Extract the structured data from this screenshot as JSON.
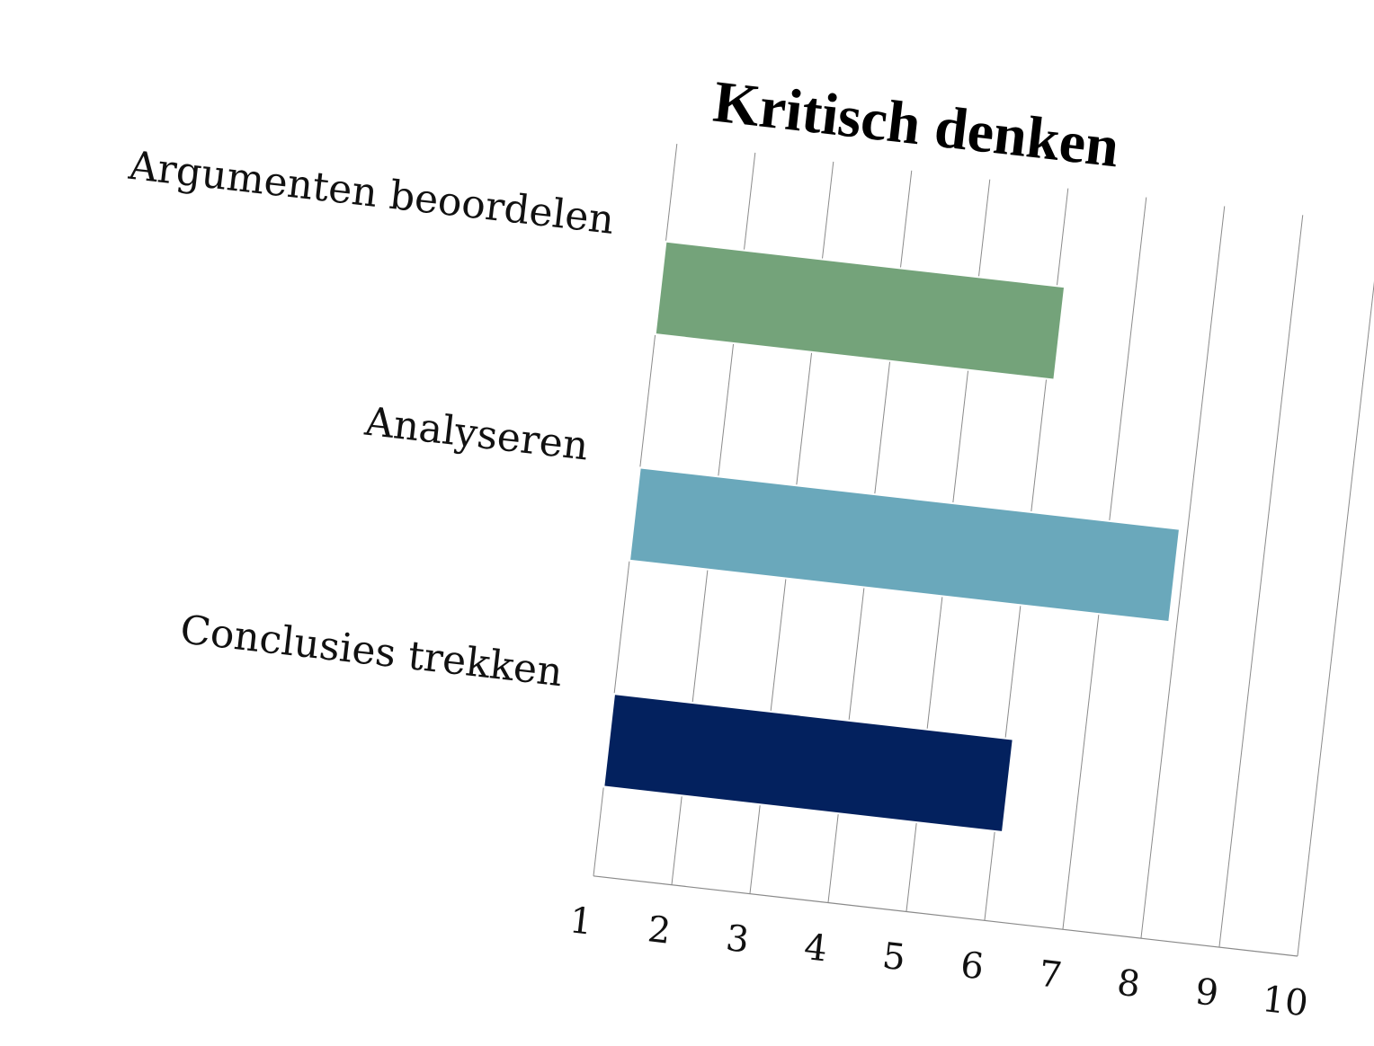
{
  "chart_data": {
    "type": "bar",
    "orientation": "horizontal",
    "title": "Kritisch denken",
    "categories": [
      "Argumenten beoordelen",
      "Analyseren",
      "Conclusies trekken"
    ],
    "values": [
      6.1,
      7.9,
      6.1
    ],
    "colors": [
      "#74a37a",
      "#6aa8bb",
      "#03215e"
    ],
    "xlim": [
      1,
      10
    ],
    "x_ticks": [
      "1",
      "2",
      "3",
      "4",
      "5",
      "6",
      "7",
      "8",
      "9",
      "10"
    ],
    "xlabel": "",
    "ylabel": "",
    "grid": true,
    "legend": "none"
  }
}
